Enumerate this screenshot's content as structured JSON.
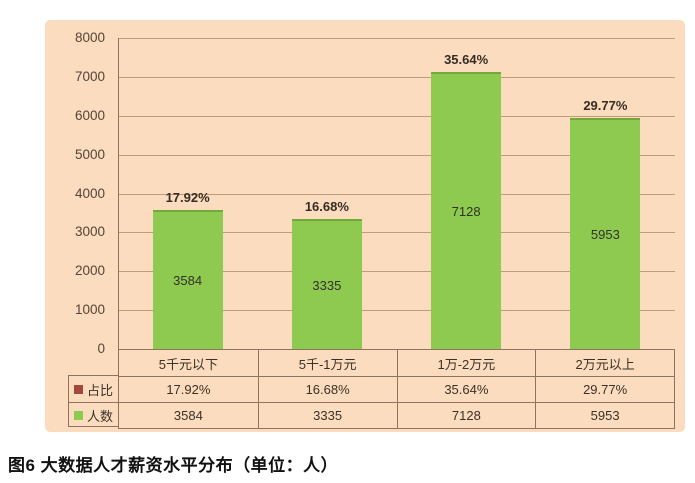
{
  "caption": "图6 大数据人才薪资水平分布（单位：人）",
  "chart_data": {
    "type": "bar",
    "title": "",
    "xlabel": "",
    "ylabel": "",
    "categories": [
      "5千元以下",
      "5千-1万元",
      "1万-2万元",
      "2万元以上"
    ],
    "series": [
      {
        "name": "占比",
        "values": [
          17.92,
          16.68,
          35.64,
          29.77
        ],
        "unit": "%",
        "swatch_color": "#a3483c"
      },
      {
        "name": "人数",
        "values": [
          3584,
          3335,
          7128,
          5953
        ],
        "unit": "人",
        "swatch_color": "#8dca4f"
      }
    ],
    "percent_labels": [
      "17.92%",
      "16.68%",
      "35.64%",
      "29.77%"
    ],
    "count_labels": [
      "3584",
      "3335",
      "7128",
      "5953"
    ],
    "y_ticks": [
      0,
      1000,
      2000,
      3000,
      4000,
      5000,
      6000,
      7000,
      8000
    ],
    "ylim": [
      0,
      8000
    ],
    "grid": true,
    "legend_position": "table-left",
    "colors": {
      "panel_bg": "#fbdcbe",
      "bar_fill": "#8dca4f",
      "bar_top_edge": "#73a83b",
      "gridline": "#bf9c7d",
      "axis_border": "#8c7460",
      "axis_text": "#554437",
      "table_text": "#3b3127",
      "bar_value_text": "#333128",
      "percent_label_text": "#352d23"
    }
  }
}
